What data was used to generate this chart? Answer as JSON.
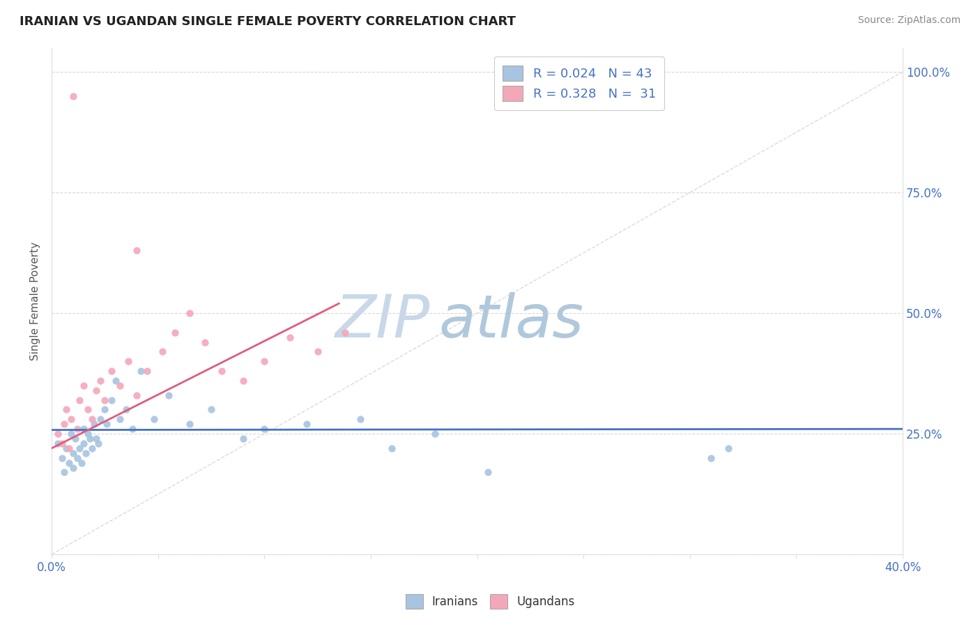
{
  "title": "IRANIAN VS UGANDAN SINGLE FEMALE POVERTY CORRELATION CHART",
  "source": "Source: ZipAtlas.com",
  "ylabel": "Single Female Poverty",
  "xlim": [
    0.0,
    0.4
  ],
  "ylim": [
    0.0,
    1.05
  ],
  "xtick_positions": [
    0.0,
    0.05,
    0.1,
    0.15,
    0.2,
    0.25,
    0.3,
    0.35,
    0.4
  ],
  "xticklabels": [
    "0.0%",
    "",
    "",
    "",
    "",
    "",
    "",
    "",
    "40.0%"
  ],
  "ytick_positions": [
    0.0,
    0.25,
    0.5,
    0.75,
    1.0
  ],
  "yticklabels_right": [
    "",
    "25.0%",
    "50.0%",
    "75.0%",
    "100.0%"
  ],
  "iranian_color": "#a8c4e0",
  "ugandan_color": "#f4a7b9",
  "trend_iranian_color": "#4472c4",
  "trend_ugandan_color": "#e05c7a",
  "diagonal_color": "#cccccc",
  "watermark_zip_color": "#c8d8e8",
  "watermark_atlas_color": "#b0c8dc",
  "background_color": "#ffffff",
  "grid_color": "#d8d8d8",
  "tick_color": "#4472c4",
  "title_color": "#222222",
  "source_color": "#888888",
  "legend_label_color": "#4472c4",
  "iranians_x": [
    0.003,
    0.005,
    0.006,
    0.007,
    0.008,
    0.009,
    0.01,
    0.01,
    0.011,
    0.012,
    0.013,
    0.014,
    0.015,
    0.015,
    0.016,
    0.017,
    0.018,
    0.019,
    0.02,
    0.021,
    0.022,
    0.023,
    0.025,
    0.026,
    0.028,
    0.03,
    0.032,
    0.035,
    0.038,
    0.042,
    0.048,
    0.055,
    0.065,
    0.075,
    0.09,
    0.1,
    0.12,
    0.145,
    0.16,
    0.18,
    0.205,
    0.31,
    0.318
  ],
  "iranians_y": [
    0.23,
    0.2,
    0.17,
    0.22,
    0.19,
    0.25,
    0.21,
    0.18,
    0.24,
    0.2,
    0.22,
    0.19,
    0.26,
    0.23,
    0.21,
    0.25,
    0.24,
    0.22,
    0.27,
    0.24,
    0.23,
    0.28,
    0.3,
    0.27,
    0.32,
    0.36,
    0.28,
    0.3,
    0.26,
    0.38,
    0.28,
    0.33,
    0.27,
    0.3,
    0.24,
    0.26,
    0.27,
    0.28,
    0.22,
    0.25,
    0.17,
    0.2,
    0.22
  ],
  "ugandans_x": [
    0.003,
    0.005,
    0.006,
    0.007,
    0.008,
    0.009,
    0.01,
    0.012,
    0.013,
    0.015,
    0.017,
    0.019,
    0.021,
    0.023,
    0.025,
    0.028,
    0.032,
    0.036,
    0.04,
    0.045,
    0.052,
    0.058,
    0.065,
    0.072,
    0.08,
    0.09,
    0.1,
    0.112,
    0.125,
    0.138,
    0.04
  ],
  "ugandans_y": [
    0.25,
    0.23,
    0.27,
    0.3,
    0.22,
    0.28,
    0.95,
    0.26,
    0.32,
    0.35,
    0.3,
    0.28,
    0.34,
    0.36,
    0.32,
    0.38,
    0.35,
    0.4,
    0.33,
    0.38,
    0.42,
    0.46,
    0.5,
    0.44,
    0.38,
    0.36,
    0.4,
    0.45,
    0.42,
    0.46,
    0.63
  ],
  "iran_trend_x": [
    0.0,
    0.4
  ],
  "iran_trend_y": [
    0.258,
    0.26
  ],
  "ug_trend_x": [
    0.0,
    0.135
  ],
  "ug_trend_y": [
    0.22,
    0.52
  ]
}
